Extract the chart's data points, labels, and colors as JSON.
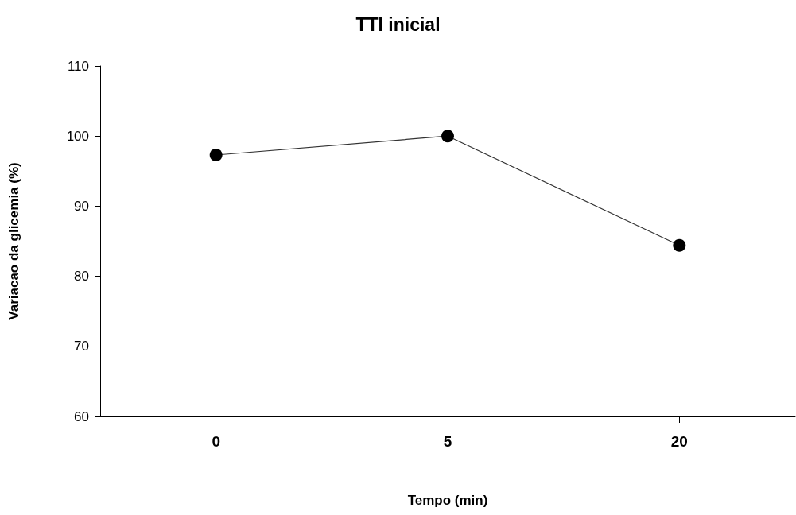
{
  "chart_data": {
    "type": "line",
    "title": "TTI inicial",
    "xlabel": "Tempo (min)",
    "ylabel": "Variacao da glicemia (%)",
    "categories": [
      "0",
      "5",
      "20"
    ],
    "series": [
      {
        "color": "#000000",
        "values": [
          97.3,
          100,
          84.4
        ]
      }
    ],
    "ylim": [
      60,
      110
    ],
    "yticks": [
      60,
      70,
      80,
      90,
      100,
      110
    ],
    "grid": false,
    "marker": "circle",
    "line_style": "solid"
  }
}
